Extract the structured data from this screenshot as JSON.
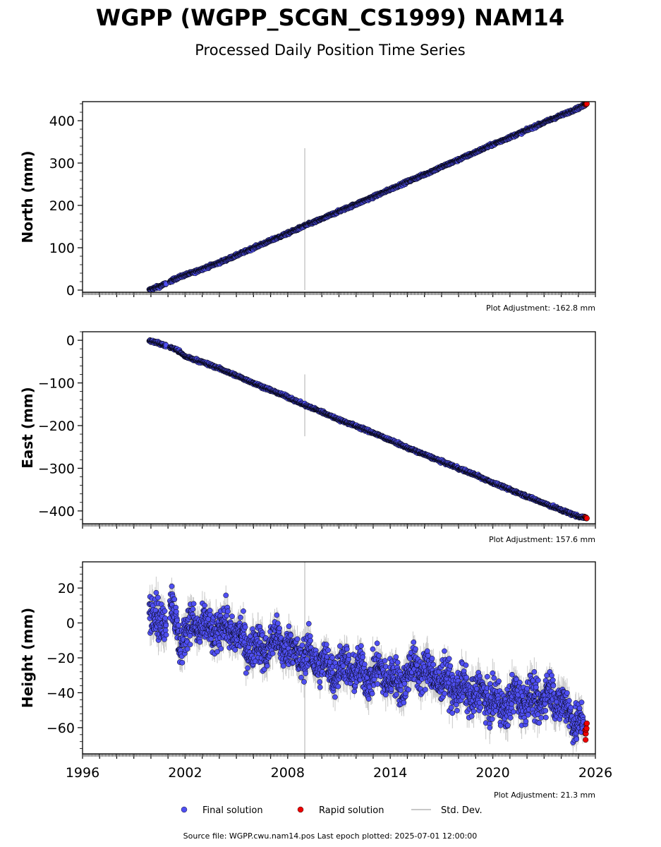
{
  "title": "WGPP (WGPP_SCGN_CS1999) NAM14",
  "subtitle": "Processed Daily Position Time Series",
  "legend": {
    "final_label": "Final solution",
    "rapid_label": "Rapid solution",
    "std_label": "Std. Dev."
  },
  "footer": "Source file: WGPP.cwu.nam14.pos  Last epoch plotted: 2025-07-01 12:00:00",
  "colors": {
    "final": "#4f4ff2",
    "rapid": "#ee0000",
    "stddev": "#c8c8c8",
    "axis": "#000000"
  },
  "chart_data": [
    {
      "type": "scatter",
      "ylabel": "North (mm)",
      "adjustment": "Plot Adjustment: -162.8 mm",
      "xlim": [
        1996,
        2026
      ],
      "ylim": [
        -5,
        445
      ],
      "yticks": [
        0,
        100,
        200,
        300,
        400
      ],
      "ytick_labels": [
        "0",
        "100",
        "200",
        "300",
        "400"
      ],
      "show_x_tick_labels": false,
      "series": [
        {
          "name": "Final solution",
          "x": [
            1999.9,
            2000.2,
            2000.6,
            2001.0,
            2001.5,
            2002.0,
            2002.5,
            2003.0,
            2004.0,
            2005.0,
            2006.0,
            2007.0,
            2008.0,
            2009.0,
            2010.0,
            2011.0,
            2012.0,
            2013.0,
            2014.0,
            2015.0,
            2016.0,
            2017.0,
            2018.0,
            2019.0,
            2020.0,
            2021.0,
            2022.0,
            2023.0,
            2024.0,
            2025.0,
            2025.4
          ],
          "y": [
            0,
            5,
            10,
            18,
            28,
            36,
            42,
            50,
            65,
            82,
            100,
            117,
            134,
            152,
            168,
            186,
            203,
            220,
            238,
            256,
            273,
            291,
            308,
            326,
            344,
            361,
            378,
            396,
            413,
            430,
            437
          ]
        },
        {
          "name": "Rapid solution",
          "x": [
            2025.4,
            2025.5
          ],
          "y": [
            438,
            440
          ]
        }
      ],
      "outlier": {
        "x": 2009.0,
        "low": 0,
        "high": 335
      }
    },
    {
      "type": "scatter",
      "ylabel": "East (mm)",
      "adjustment": "Plot Adjustment: 157.6 mm",
      "xlim": [
        1996,
        2026
      ],
      "ylim": [
        -430,
        20
      ],
      "yticks": [
        0,
        -100,
        -200,
        -300,
        -400
      ],
      "ytick_labels": [
        "0",
        "−100",
        "−200",
        "−300",
        "−400"
      ],
      "show_x_tick_labels": false,
      "series": [
        {
          "name": "Final solution",
          "x": [
            1999.9,
            2000.3,
            2000.8,
            2001.5,
            2002.0,
            2003.0,
            2004.0,
            2005.0,
            2006.0,
            2007.0,
            2008.0,
            2009.0,
            2010.0,
            2011.0,
            2012.0,
            2013.0,
            2014.0,
            2015.0,
            2016.0,
            2017.0,
            2018.0,
            2019.0,
            2020.0,
            2021.0,
            2022.0,
            2023.0,
            2024.0,
            2025.0,
            2025.4
          ],
          "y": [
            0,
            -5,
            -12,
            -22,
            -38,
            -51,
            -66,
            -83,
            -100,
            -117,
            -133,
            -152,
            -168,
            -186,
            -201,
            -217,
            -234,
            -252,
            -268,
            -284,
            -300,
            -316,
            -334,
            -350,
            -366,
            -382,
            -398,
            -413,
            -416
          ]
        },
        {
          "name": "Rapid solution",
          "x": [
            2025.4,
            2025.5
          ],
          "y": [
            -415,
            -417
          ]
        }
      ],
      "outlier": {
        "x": 2009.0,
        "low": -225,
        "high": -80
      }
    },
    {
      "type": "scatter",
      "ylabel": "Height (mm)",
      "adjustment": "Plot Adjustment: 21.3 mm",
      "xlim": [
        1996,
        2026
      ],
      "ylim": [
        -75,
        35
      ],
      "yticks": [
        20,
        0,
        -20,
        -40,
        -60
      ],
      "ytick_labels": [
        "20",
        "0",
        "−20",
        "−40",
        "−60"
      ],
      "xticks": [
        1996,
        2002,
        2008,
        2014,
        2020,
        2026
      ],
      "xtick_labels": [
        "1996",
        "2002",
        "2008",
        "2014",
        "2020",
        "2026"
      ],
      "show_x_tick_labels": true,
      "series": [
        {
          "name": "Final solution",
          "x": [
            1999.9,
            2000.5,
            2001.2,
            2001.7,
            2002.5,
            2003.5,
            2004.5,
            2005.5,
            2006.5,
            2007.5,
            2008.5,
            2009.5,
            2010.5,
            2011.5,
            2012.5,
            2013.5,
            2014.5,
            2015.5,
            2016.5,
            2017.5,
            2018.5,
            2019.5,
            2020.5,
            2021.5,
            2022.5,
            2023.5,
            2024.5,
            2025.3
          ],
          "y": [
            8,
            0,
            10,
            -10,
            0,
            -5,
            -2,
            -12,
            -15,
            -10,
            -18,
            -20,
            -27,
            -25,
            -30,
            -28,
            -35,
            -25,
            -30,
            -35,
            -40,
            -42,
            -48,
            -42,
            -45,
            -40,
            -52,
            -60
          ]
        },
        {
          "name": "Rapid solution",
          "x": [
            2025.4,
            2025.5
          ],
          "y": [
            -62,
            -60
          ]
        }
      ],
      "outlier": {
        "x": 2009.0,
        "low": -75,
        "high": 35
      }
    }
  ]
}
